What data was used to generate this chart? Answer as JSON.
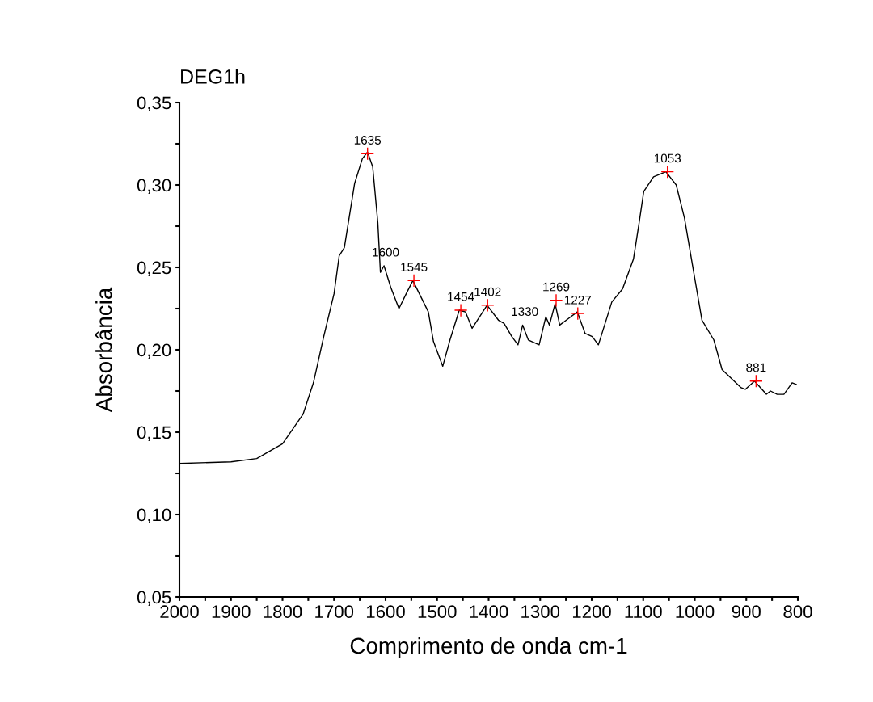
{
  "chart_data": {
    "type": "line",
    "title": "DEG1h",
    "xlabel": "Comprimento de onda cm-1",
    "ylabel": "Absorbância",
    "xlim": [
      2000,
      800
    ],
    "ylim": [
      0.05,
      0.35
    ],
    "xticks": [
      2000,
      {
        "value": 1950,
        "label": null
      },
      1900,
      {
        "value": 1850,
        "label": null
      },
      1800,
      {
        "value": 1750,
        "label": null
      },
      1700,
      {
        "value": 1650,
        "label": null
      },
      1600,
      {
        "value": 1550,
        "label": null
      },
      1500,
      {
        "value": 1450,
        "label": null
      },
      1400,
      {
        "value": 1350,
        "label": null
      },
      1300,
      {
        "value": 1250,
        "label": null
      },
      1200,
      {
        "value": 1150,
        "label": null
      },
      1100,
      {
        "value": 1050,
        "label": null
      },
      1000,
      {
        "value": 950,
        "label": null
      },
      900,
      {
        "value": 850,
        "label": null
      },
      800
    ],
    "yticks": [
      {
        "value": 0.05,
        "label": "0,05"
      },
      {
        "value": 0.075,
        "label": null
      },
      {
        "value": 0.1,
        "label": "0,10"
      },
      {
        "value": 0.125,
        "label": null
      },
      {
        "value": 0.15,
        "label": "0,15"
      },
      {
        "value": 0.175,
        "label": null
      },
      {
        "value": 0.2,
        "label": "0,20"
      },
      {
        "value": 0.225,
        "label": null
      },
      {
        "value": 0.25,
        "label": "0,25"
      },
      {
        "value": 0.275,
        "label": null
      },
      {
        "value": 0.3,
        "label": "0,30"
      },
      {
        "value": 0.325,
        "label": null
      },
      {
        "value": 0.35,
        "label": "0,35"
      }
    ],
    "grid": false,
    "legend": false,
    "series": [
      {
        "color": "#000000",
        "marker": "none",
        "line_style": "solid",
        "x": [
          2000,
          1900,
          1850,
          1800,
          1760,
          1740,
          1720,
          1700,
          1690,
          1680,
          1660,
          1645,
          1635,
          1625,
          1615,
          1610,
          1603,
          1590,
          1574,
          1560,
          1547,
          1517,
          1507,
          1489,
          1475,
          1457,
          1445,
          1432,
          1403,
          1381,
          1370,
          1355,
          1343,
          1334,
          1323,
          1302,
          1289,
          1282,
          1271,
          1262,
          1245,
          1228,
          1213,
          1199,
          1187,
          1161,
          1140,
          1119,
          1108,
          1099,
          1080,
          1056,
          1036,
          1020,
          1002,
          986,
          963,
          947,
          910,
          902,
          884,
          861,
          853,
          840,
          827,
          811,
          803
        ],
        "values": [
          0.131,
          0.132,
          0.134,
          0.143,
          0.161,
          0.18,
          0.208,
          0.234,
          0.257,
          0.262,
          0.301,
          0.316,
          0.32,
          0.311,
          0.277,
          0.247,
          0.251,
          0.238,
          0.225,
          0.234,
          0.242,
          0.223,
          0.205,
          0.19,
          0.206,
          0.224,
          0.223,
          0.213,
          0.227,
          0.218,
          0.216,
          0.208,
          0.203,
          0.215,
          0.206,
          0.203,
          0.22,
          0.215,
          0.228,
          0.215,
          0.219,
          0.223,
          0.21,
          0.208,
          0.203,
          0.229,
          0.237,
          0.255,
          0.277,
          0.296,
          0.305,
          0.308,
          0.3,
          0.28,
          0.247,
          0.218,
          0.206,
          0.188,
          0.177,
          0.176,
          0.181,
          0.173,
          0.175,
          0.173,
          0.173,
          0.18,
          0.179
        ]
      },
      {
        "type": "scatter",
        "color": "#ff0000",
        "marker": "cross",
        "x": [
          1635,
          1545,
          1454,
          1402,
          1269,
          1227,
          1053,
          881
        ],
        "values": [
          0.319,
          0.242,
          0.224,
          0.227,
          0.23,
          0.222,
          0.308,
          0.181
        ]
      }
    ],
    "annotations": [
      {
        "text": "1635",
        "x": 1635,
        "y": 0.319
      },
      {
        "text": "1600",
        "x": 1600,
        "y": 0.251
      },
      {
        "text": "1545",
        "x": 1545,
        "y": 0.242
      },
      {
        "text": "1454",
        "x": 1454,
        "y": 0.224
      },
      {
        "text": "1402",
        "x": 1402,
        "y": 0.227
      },
      {
        "text": "1330",
        "x": 1330,
        "y": 0.215
      },
      {
        "text": "1269",
        "x": 1269,
        "y": 0.23
      },
      {
        "text": "1227",
        "x": 1227,
        "y": 0.222
      },
      {
        "text": "1053",
        "x": 1053,
        "y": 0.308
      },
      {
        "text": "881",
        "x": 881,
        "y": 0.181
      }
    ]
  }
}
